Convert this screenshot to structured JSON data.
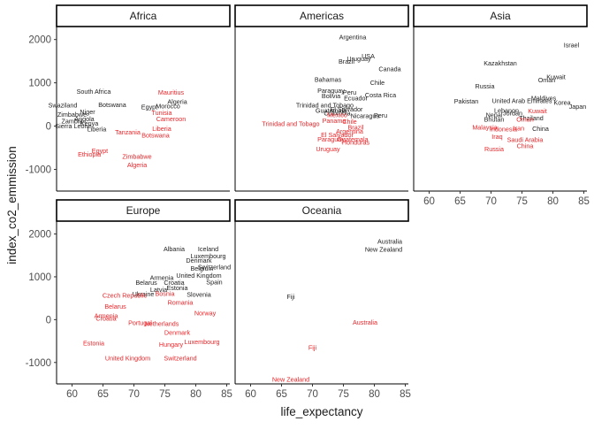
{
  "chart_data": {
    "type": "scatter",
    "facet_by": "continent",
    "xlabel": "life_expectancy",
    "ylabel": "index_co2_emmission",
    "xlim": [
      57.5,
      85.5
    ],
    "ylim": [
      -1500,
      2300
    ],
    "xticks": [
      60,
      65,
      70,
      75,
      80,
      85
    ],
    "yticks": [
      -1000,
      0,
      1000,
      2000
    ],
    "grid": false,
    "colors": {
      "series_a": "#222222",
      "series_b": "#e8262a"
    },
    "panels": [
      {
        "facet": "Africa",
        "series_a": [
          {
            "label": "South Africa",
            "x": 63.5,
            "y": 800
          },
          {
            "label": "Swaziland",
            "x": 58.5,
            "y": 480
          },
          {
            "label": "Niger",
            "x": 62.5,
            "y": 330
          },
          {
            "label": "Botswana",
            "x": 66.5,
            "y": 490
          },
          {
            "label": "Egypt",
            "x": 72.5,
            "y": 440
          },
          {
            "label": "Algeria",
            "x": 77,
            "y": 560
          },
          {
            "label": "Morocco",
            "x": 75.5,
            "y": 460
          },
          {
            "label": "Zimbabwe",
            "x": 60,
            "y": 270
          },
          {
            "label": "Angola",
            "x": 62,
            "y": 170
          },
          {
            "label": "Zambia",
            "x": 60,
            "y": 110
          },
          {
            "label": "Kenya",
            "x": 62.8,
            "y": 60
          },
          {
            "label": "Sierra Leone",
            "x": 60.2,
            "y": 0
          },
          {
            "label": "Liberia",
            "x": 64,
            "y": -70
          }
        ],
        "series_b": [
          {
            "label": "Mauritius",
            "x": 76,
            "y": 780
          },
          {
            "label": "Tunisia",
            "x": 74.5,
            "y": 310
          },
          {
            "label": "Cameroon",
            "x": 76,
            "y": 170
          },
          {
            "label": "Tanzania",
            "x": 69,
            "y": -140
          },
          {
            "label": "Liberia",
            "x": 74.5,
            "y": -60
          },
          {
            "label": "Botswana",
            "x": 73.5,
            "y": -210
          },
          {
            "label": "Egypt",
            "x": 64.5,
            "y": -570
          },
          {
            "label": "Ethiopia",
            "x": 62.8,
            "y": -650
          },
          {
            "label": "Zimbabwe",
            "x": 70.5,
            "y": -700
          },
          {
            "label": "Algeria",
            "x": 70.5,
            "y": -900
          }
        ]
      },
      {
        "facet": "Americas",
        "series_a": [
          {
            "label": "Argentina",
            "x": 76.5,
            "y": 2050
          },
          {
            "label": "USA",
            "x": 79,
            "y": 1620
          },
          {
            "label": "Uruguay",
            "x": 77.5,
            "y": 1550
          },
          {
            "label": "Brazil",
            "x": 75.5,
            "y": 1490
          },
          {
            "label": "Canada",
            "x": 82.5,
            "y": 1320
          },
          {
            "label": "Chile",
            "x": 80.5,
            "y": 1000
          },
          {
            "label": "Bahamas",
            "x": 72.5,
            "y": 1070
          },
          {
            "label": "Paraguay",
            "x": 73,
            "y": 820
          },
          {
            "label": "Peru",
            "x": 76,
            "y": 780
          },
          {
            "label": "Costa Rica",
            "x": 81,
            "y": 720
          },
          {
            "label": "Bolivia",
            "x": 73,
            "y": 700
          },
          {
            "label": "Ecuador",
            "x": 77,
            "y": 650
          },
          {
            "label": "Trinidad and Tobago",
            "x": 72,
            "y": 480
          },
          {
            "label": "El Salvador",
            "x": 75.5,
            "y": 390
          },
          {
            "label": "Guatemala",
            "x": 73,
            "y": 360
          },
          {
            "label": "Colombia",
            "x": 74,
            "y": 300
          },
          {
            "label": "Nicaragua",
            "x": 78.5,
            "y": 240
          },
          {
            "label": "Peru",
            "x": 81,
            "y": 250
          }
        ],
        "series_b": [
          {
            "label": "Mexico",
            "x": 74,
            "y": 260
          },
          {
            "label": "Panama",
            "x": 73.5,
            "y": 120
          },
          {
            "label": "Chile",
            "x": 76,
            "y": 100
          },
          {
            "label": "Trinidad and Tobago",
            "x": 66.5,
            "y": 50
          },
          {
            "label": "Brazil",
            "x": 77,
            "y": -30
          },
          {
            "label": "Argentina",
            "x": 76,
            "y": -120
          },
          {
            "label": "El Salvador",
            "x": 74,
            "y": -200
          },
          {
            "label": "Paraguay",
            "x": 73,
            "y": -300
          },
          {
            "label": "Guatemala",
            "x": 76.5,
            "y": -300
          },
          {
            "label": "Honduras",
            "x": 77,
            "y": -380
          },
          {
            "label": "Uruguay",
            "x": 72.5,
            "y": -530
          }
        ]
      },
      {
        "facet": "Asia",
        "series_a": [
          {
            "label": "Kazakhstan",
            "x": 71.5,
            "y": 1450
          },
          {
            "label": "Israel",
            "x": 83,
            "y": 1870
          },
          {
            "label": "Kuwait",
            "x": 80.5,
            "y": 1140
          },
          {
            "label": "Oman",
            "x": 79,
            "y": 1060
          },
          {
            "label": "Russia",
            "x": 69,
            "y": 920
          },
          {
            "label": "Japan",
            "x": 84,
            "y": 450
          },
          {
            "label": "Korea",
            "x": 81.5,
            "y": 540
          },
          {
            "label": "Pakistan",
            "x": 66,
            "y": 570
          },
          {
            "label": "United Arab Emirates",
            "x": 75,
            "y": 580
          },
          {
            "label": "Maldives",
            "x": 78.5,
            "y": 650
          },
          {
            "label": "Nepal",
            "x": 70.5,
            "y": 260
          },
          {
            "label": "Lebanon",
            "x": 72.5,
            "y": 360
          },
          {
            "label": "Jordan",
            "x": 73.5,
            "y": 300
          },
          {
            "label": "Bhutan",
            "x": 70.5,
            "y": 150
          },
          {
            "label": "Thailand",
            "x": 76.5,
            "y": 190
          },
          {
            "label": "China",
            "x": 78,
            "y": -60
          }
        ],
        "series_b": [
          {
            "label": "Malaysia",
            "x": 69,
            "y": -30
          },
          {
            "label": "Indonesia",
            "x": 72,
            "y": -70
          },
          {
            "label": "Iran",
            "x": 74.5,
            "y": -50
          },
          {
            "label": "Kuwait",
            "x": 77.5,
            "y": 350
          },
          {
            "label": "Oman",
            "x": 75.5,
            "y": 150
          },
          {
            "label": "Iraq",
            "x": 71,
            "y": -240
          },
          {
            "label": "Saudi Arabia",
            "x": 75.5,
            "y": -320
          },
          {
            "label": "Russia",
            "x": 70.5,
            "y": -530
          },
          {
            "label": "China",
            "x": 75.5,
            "y": -460
          }
        ]
      },
      {
        "facet": "Europe",
        "series_a": [
          {
            "label": "Albania",
            "x": 76.5,
            "y": 1650
          },
          {
            "label": "Iceland",
            "x": 82,
            "y": 1650
          },
          {
            "label": "Luxembourg",
            "x": 82,
            "y": 1480
          },
          {
            "label": "Denmark",
            "x": 80.5,
            "y": 1380
          },
          {
            "label": "Belgium",
            "x": 81,
            "y": 1200
          },
          {
            "label": "Switzerland",
            "x": 83,
            "y": 1230
          },
          {
            "label": "United Kingdom",
            "x": 80.5,
            "y": 1030
          },
          {
            "label": "Spain",
            "x": 83,
            "y": 880
          },
          {
            "label": "Armenia",
            "x": 74.5,
            "y": 980
          },
          {
            "label": "Belarus",
            "x": 72,
            "y": 860
          },
          {
            "label": "Croatia",
            "x": 76.5,
            "y": 860
          },
          {
            "label": "Estonia",
            "x": 77,
            "y": 740
          },
          {
            "label": "Latvia",
            "x": 74,
            "y": 700
          },
          {
            "label": "Ukraine",
            "x": 71.5,
            "y": 600
          },
          {
            "label": "Slovenia",
            "x": 80.5,
            "y": 590
          }
        ],
        "series_b": [
          {
            "label": "Czech Republic",
            "x": 68.5,
            "y": 570
          },
          {
            "label": "Bosnia",
            "x": 75,
            "y": 610
          },
          {
            "label": "Belarus",
            "x": 67,
            "y": 310
          },
          {
            "label": "Armenia",
            "x": 65.5,
            "y": 90
          },
          {
            "label": "Croatia",
            "x": 65.5,
            "y": 30
          },
          {
            "label": "Romania",
            "x": 77.5,
            "y": 400
          },
          {
            "label": "Norway",
            "x": 81.5,
            "y": 150
          },
          {
            "label": "Portugal",
            "x": 71,
            "y": -80
          },
          {
            "label": "Netherlands",
            "x": 74.5,
            "y": -100
          },
          {
            "label": "Denmark",
            "x": 77,
            "y": -300
          },
          {
            "label": "Estonia",
            "x": 63.5,
            "y": -550
          },
          {
            "label": "Hungary",
            "x": 76,
            "y": -580
          },
          {
            "label": "Luxembourg",
            "x": 81,
            "y": -520
          },
          {
            "label": "United Kingdom",
            "x": 69,
            "y": -900
          },
          {
            "label": "Switzerland",
            "x": 77.5,
            "y": -900
          }
        ]
      },
      {
        "facet": "Oceania",
        "series_a": [
          {
            "label": "Australia",
            "x": 82.5,
            "y": 1820
          },
          {
            "label": "New Zealand",
            "x": 81.5,
            "y": 1640
          },
          {
            "label": "Fiji",
            "x": 66.5,
            "y": 530
          }
        ],
        "series_b": [
          {
            "label": "Australia",
            "x": 78.5,
            "y": -60
          },
          {
            "label": "Fiji",
            "x": 70,
            "y": -650
          },
          {
            "label": "New Zealand",
            "x": 66.5,
            "y": -1400
          }
        ]
      }
    ]
  }
}
